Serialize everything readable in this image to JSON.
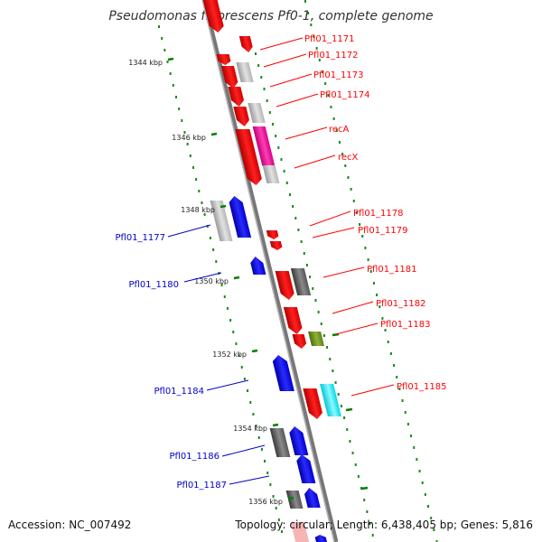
{
  "title": "Pseudomonas fluorescens Pf0-1, complete genome",
  "footer": {
    "accession": "Accession: NC_007492",
    "stats": "Topology: circular; Length: 6,438,405 bp; Genes: 5,816"
  },
  "colors": {
    "backbone": "#888888",
    "forward_gene": "#ff0000",
    "reverse_gene": "#0000ff",
    "tick": "#008000",
    "dots": "#008000"
  },
  "ticks": [
    "1344 kbp",
    "1346 kbp",
    "1348 kbp",
    "1350 kbp",
    "1352 kbp",
    "1354 kbp",
    "1356 kbp"
  ],
  "right_labels": [
    "Pfl01_1171",
    "Pfl01_1172",
    "Pfl01_1173",
    "Pfl01_1174",
    "recA",
    "recX",
    "Pfl01_1178",
    "Pfl01_1179",
    "Pfl01_1181",
    "Pfl01_1182",
    "Pfl01_1183",
    "Pfl01_1185"
  ],
  "left_labels": [
    "Pfl01_1177",
    "Pfl01_1180",
    "Pfl01_1184",
    "Pfl01_1186",
    "Pfl01_1187"
  ]
}
